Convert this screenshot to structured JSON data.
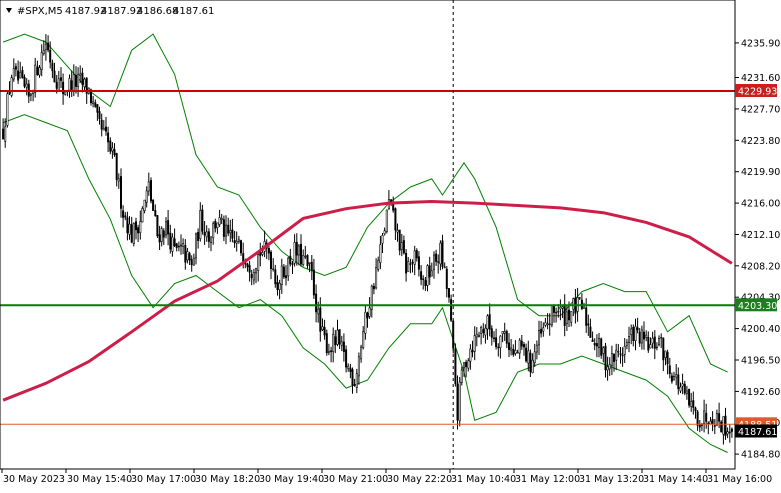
{
  "header": {
    "symbol": "#SPX,M5",
    "open": "4187.92",
    "high": "4187.92",
    "low": "4186.68",
    "close": "4187.61"
  },
  "colors": {
    "background": "#ffffff",
    "candle": "#000000",
    "bands": "#008000",
    "slow_ma": "#cc1e48",
    "line_red": "#cc0000",
    "line_green": "#008000",
    "line_bid": "#e05a2a",
    "tag_green": "#1e7d1e",
    "tag_red": "#cc1e1e",
    "tag_black": "#000000"
  },
  "chart_data": {
    "type": "candlestick",
    "timeframe": "M5",
    "ylim": [
      4183.2,
      4239.0
    ],
    "y_ticks": [
      "4235.90",
      "4231.60",
      "4227.70",
      "4223.80",
      "4219.90",
      "4216.00",
      "4212.10",
      "4208.20",
      "4204.30",
      "4200.40",
      "4196.50",
      "4192.60",
      "4188.70",
      "4184.80"
    ],
    "x_ticks": [
      "30 May 2023",
      "30 May 15:40",
      "30 May 17:00",
      "30 May 18:20",
      "30 May 19:40",
      "30 May 21:00",
      "30 May 22:20",
      "31 May 10:40",
      "31 May 12:00",
      "31 May 13:20",
      "31 May 14:40",
      "31 May 16:00"
    ],
    "horizontal_lines": [
      {
        "value": 4229.93,
        "label": "4229.93",
        "color": "#cc0000"
      },
      {
        "value": 4203.3,
        "label": "4203.30",
        "color": "#008000"
      },
      {
        "value": 4188.51,
        "label": "4188.51",
        "color": "#e05a2a"
      }
    ],
    "last_price": {
      "value": 4187.61,
      "label": "4187.61"
    },
    "session_separator_index": 210,
    "close_path": [
      [
        0,
        4225
      ],
      [
        4,
        4232
      ],
      [
        8,
        4231
      ],
      [
        12,
        4229
      ],
      [
        16,
        4233
      ],
      [
        20,
        4236
      ],
      [
        24,
        4232
      ],
      [
        28,
        4230
      ],
      [
        32,
        4231
      ],
      [
        36,
        4231
      ],
      [
        40,
        4230
      ],
      [
        44,
        4226
      ],
      [
        48,
        4224
      ],
      [
        52,
        4221
      ],
      [
        56,
        4215
      ],
      [
        60,
        4212
      ],
      [
        64,
        4214
      ],
      [
        68,
        4218
      ],
      [
        72,
        4212
      ],
      [
        76,
        4213
      ],
      [
        80,
        4210
      ],
      [
        84,
        4210
      ],
      [
        88,
        4208
      ],
      [
        92,
        4214
      ],
      [
        96,
        4212
      ],
      [
        100,
        4214
      ],
      [
        104,
        4212
      ],
      [
        108,
        4211
      ],
      [
        112,
        4210
      ],
      [
        116,
        4208
      ],
      [
        120,
        4210
      ],
      [
        124,
        4210
      ],
      [
        128,
        4206
      ],
      [
        132,
        4208
      ],
      [
        136,
        4210
      ],
      [
        140,
        4209
      ],
      [
        144,
        4207
      ],
      [
        148,
        4200
      ],
      [
        152,
        4198
      ],
      [
        156,
        4199
      ],
      [
        160,
        4196
      ],
      [
        164,
        4194
      ],
      [
        168,
        4200
      ],
      [
        172,
        4205
      ],
      [
        176,
        4210
      ],
      [
        180,
        4216
      ],
      [
        184,
        4212
      ],
      [
        188,
        4208
      ],
      [
        192,
        4209
      ],
      [
        196,
        4206
      ],
      [
        200,
        4208
      ],
      [
        204,
        4210
      ],
      [
        208,
        4204
      ],
      [
        212,
        4190
      ],
      [
        214,
        4195
      ],
      [
        218,
        4198
      ],
      [
        222,
        4200
      ],
      [
        226,
        4201
      ],
      [
        230,
        4199
      ],
      [
        234,
        4200
      ],
      [
        238,
        4197
      ],
      [
        242,
        4198
      ],
      [
        246,
        4196
      ],
      [
        250,
        4199
      ],
      [
        254,
        4201
      ],
      [
        258,
        4203
      ],
      [
        262,
        4202
      ],
      [
        266,
        4203
      ],
      [
        270,
        4203
      ],
      [
        274,
        4200
      ],
      [
        278,
        4198
      ],
      [
        282,
        4196
      ],
      [
        286,
        4197
      ],
      [
        290,
        4198
      ],
      [
        294,
        4200
      ],
      [
        298,
        4199
      ],
      [
        302,
        4198
      ],
      [
        306,
        4199
      ],
      [
        310,
        4196
      ],
      [
        314,
        4194
      ],
      [
        318,
        4192
      ],
      [
        322,
        4190
      ],
      [
        326,
        4189
      ],
      [
        330,
        4190
      ],
      [
        334,
        4189
      ],
      [
        338,
        4188
      ],
      [
        340,
        4187.61
      ]
    ],
    "slow_ma": [
      [
        0,
        4191.5
      ],
      [
        20,
        4193.6
      ],
      [
        40,
        4196.3
      ],
      [
        60,
        4200.0
      ],
      [
        80,
        4203.8
      ],
      [
        100,
        4206.3
      ],
      [
        120,
        4210.1
      ],
      [
        140,
        4214.1
      ],
      [
        160,
        4215.3
      ],
      [
        180,
        4216.0
      ],
      [
        200,
        4216.2
      ],
      [
        220,
        4216.0
      ],
      [
        240,
        4215.7
      ],
      [
        260,
        4215.4
      ],
      [
        280,
        4214.8
      ],
      [
        300,
        4213.6
      ],
      [
        320,
        4211.8
      ],
      [
        340,
        4208.5
      ]
    ],
    "bb_upper": [
      [
        0,
        4236
      ],
      [
        10,
        4237
      ],
      [
        20,
        4236
      ],
      [
        30,
        4233
      ],
      [
        40,
        4230
      ],
      [
        50,
        4228
      ],
      [
        60,
        4235
      ],
      [
        70,
        4237
      ],
      [
        80,
        4232
      ],
      [
        90,
        4222
      ],
      [
        100,
        4218
      ],
      [
        110,
        4217
      ],
      [
        120,
        4213
      ],
      [
        130,
        4210
      ],
      [
        140,
        4208
      ],
      [
        150,
        4207
      ],
      [
        160,
        4208
      ],
      [
        170,
        4213
      ],
      [
        180,
        4216
      ],
      [
        190,
        4218
      ],
      [
        200,
        4219
      ],
      [
        205,
        4217
      ],
      [
        210,
        4219
      ],
      [
        215,
        4221
      ],
      [
        220,
        4219
      ],
      [
        230,
        4213
      ],
      [
        240,
        4204
      ],
      [
        250,
        4202
      ],
      [
        260,
        4202
      ],
      [
        270,
        4205
      ],
      [
        280,
        4206
      ],
      [
        290,
        4205
      ],
      [
        300,
        4205
      ],
      [
        310,
        4200
      ],
      [
        320,
        4202
      ],
      [
        330,
        4196
      ],
      [
        338,
        4195
      ]
    ],
    "bb_lower": [
      [
        0,
        4226
      ],
      [
        10,
        4227
      ],
      [
        20,
        4226
      ],
      [
        30,
        4225
      ],
      [
        40,
        4219
      ],
      [
        50,
        4214
      ],
      [
        60,
        4207
      ],
      [
        70,
        4203
      ],
      [
        80,
        4206
      ],
      [
        90,
        4207
      ],
      [
        100,
        4205
      ],
      [
        110,
        4203
      ],
      [
        120,
        4204
      ],
      [
        130,
        4202
      ],
      [
        140,
        4198
      ],
      [
        150,
        4196
      ],
      [
        160,
        4193
      ],
      [
        170,
        4194
      ],
      [
        180,
        4198
      ],
      [
        190,
        4201
      ],
      [
        200,
        4201
      ],
      [
        205,
        4203
      ],
      [
        210,
        4199
      ],
      [
        215,
        4195
      ],
      [
        220,
        4189
      ],
      [
        230,
        4190
      ],
      [
        240,
        4195
      ],
      [
        250,
        4196
      ],
      [
        260,
        4196
      ],
      [
        270,
        4197
      ],
      [
        280,
        4196
      ],
      [
        290,
        4195
      ],
      [
        300,
        4194
      ],
      [
        310,
        4192
      ],
      [
        320,
        4188
      ],
      [
        330,
        4186
      ],
      [
        338,
        4185
      ]
    ]
  }
}
